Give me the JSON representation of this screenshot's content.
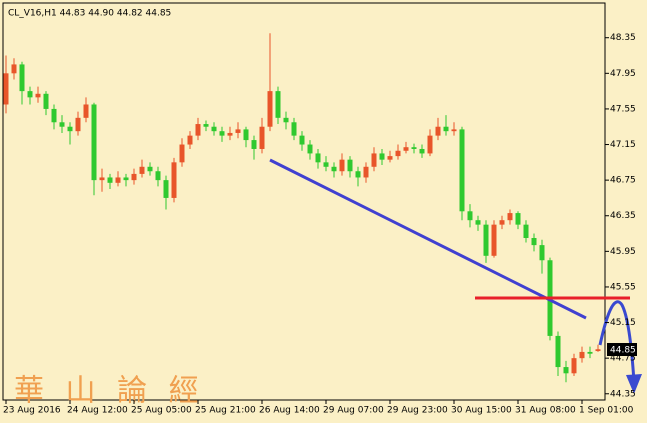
{
  "chart_data": {
    "type": "candlestick",
    "title": "CL_V16,H1  44.83 44.90 44.82 44.85",
    "watermark": "華 山 論 經",
    "categories": [
      "23 Aug 2016",
      null,
      null,
      null,
      null,
      null,
      null,
      null,
      "24 Aug 12:00",
      null,
      null,
      null,
      null,
      null,
      null,
      null,
      "25 Aug 05:00",
      null,
      null,
      null,
      null,
      null,
      null,
      null,
      "25 Aug 21:00",
      null,
      null,
      null,
      null,
      null,
      null,
      null,
      "26 Aug 14:00",
      null,
      null,
      null,
      null,
      null,
      null,
      null,
      "29 Aug 07:00",
      null,
      null,
      null,
      null,
      null,
      null,
      null,
      "29 Aug 23:00",
      null,
      null,
      null,
      null,
      null,
      null,
      null,
      "30 Aug 15:00",
      null,
      null,
      null,
      null,
      null,
      null,
      null,
      "31 Aug 08:00",
      null,
      null,
      null,
      null,
      null,
      null,
      null,
      "1 Sep 01:00",
      null,
      null
    ],
    "open": [
      47.6,
      47.95,
      48.05,
      47.75,
      47.68,
      47.72,
      47.55,
      47.4,
      47.35,
      47.3,
      47.45,
      47.6,
      46.75,
      46.78,
      46.72,
      46.78,
      46.75,
      46.82,
      46.9,
      46.85,
      46.75,
      46.55,
      46.95,
      47.15,
      47.25,
      47.38,
      47.35,
      47.3,
      47.25,
      47.28,
      47.32,
      47.2,
      47.1,
      47.35,
      47.75,
      47.45,
      47.4,
      47.25,
      47.15,
      47.05,
      46.95,
      46.9,
      46.85,
      46.98,
      46.85,
      46.78,
      46.9,
      47.05,
      46.98,
      47.02,
      47.08,
      47.12,
      47.1,
      47.05,
      47.25,
      47.35,
      47.3,
      47.32,
      46.4,
      46.3,
      46.25,
      45.9,
      46.25,
      46.3,
      46.38,
      46.25,
      46.1,
      46.02,
      45.85,
      45.0,
      44.65,
      44.58,
      44.75,
      44.82,
      44.83
    ],
    "high": [
      48.15,
      48.12,
      48.08,
      47.8,
      47.8,
      47.75,
      47.6,
      47.48,
      47.4,
      47.52,
      47.68,
      47.62,
      46.88,
      46.82,
      46.85,
      46.82,
      46.88,
      46.98,
      46.95,
      46.9,
      46.8,
      47.0,
      47.22,
      47.3,
      47.45,
      47.42,
      47.4,
      47.35,
      47.35,
      47.4,
      47.35,
      47.25,
      47.45,
      48.4,
      47.8,
      47.52,
      47.45,
      47.3,
      47.2,
      47.1,
      47.02,
      46.95,
      47.05,
      47.02,
      46.9,
      46.95,
      47.12,
      47.1,
      47.08,
      47.15,
      47.18,
      47.16,
      47.15,
      47.32,
      47.45,
      47.48,
      47.4,
      47.35,
      46.48,
      46.35,
      46.3,
      46.3,
      46.35,
      46.42,
      46.4,
      46.3,
      46.15,
      46.08,
      45.88,
      45.05,
      44.72,
      44.8,
      44.88,
      44.88,
      44.9
    ],
    "low": [
      47.5,
      47.88,
      47.6,
      47.6,
      47.62,
      47.48,
      47.32,
      47.28,
      47.15,
      47.25,
      47.4,
      46.58,
      46.62,
      46.65,
      46.68,
      46.68,
      46.7,
      46.78,
      46.8,
      46.68,
      46.42,
      46.5,
      46.9,
      47.1,
      47.2,
      47.3,
      47.25,
      47.18,
      47.2,
      47.22,
      47.12,
      46.98,
      47.05,
      47.3,
      47.38,
      47.32,
      47.2,
      47.08,
      46.98,
      46.88,
      46.85,
      46.78,
      46.8,
      46.78,
      46.68,
      46.72,
      46.85,
      46.92,
      46.95,
      46.98,
      47.05,
      47.05,
      47.0,
      47.02,
      47.2,
      47.25,
      47.25,
      46.3,
      46.22,
      46.18,
      45.82,
      45.88,
      46.2,
      46.25,
      46.2,
      46.05,
      45.95,
      45.7,
      44.95,
      44.55,
      44.48,
      44.55,
      44.7,
      44.75,
      44.82
    ],
    "close": [
      47.95,
      48.05,
      47.75,
      47.68,
      47.72,
      47.55,
      47.4,
      47.35,
      47.3,
      47.45,
      47.6,
      46.75,
      46.78,
      46.72,
      46.78,
      46.75,
      46.82,
      46.9,
      46.85,
      46.75,
      46.55,
      46.95,
      47.15,
      47.25,
      47.38,
      47.35,
      47.3,
      47.25,
      47.28,
      47.32,
      47.2,
      47.1,
      47.35,
      47.75,
      47.45,
      47.4,
      47.25,
      47.15,
      47.05,
      46.95,
      46.9,
      46.85,
      46.98,
      46.85,
      46.78,
      46.9,
      47.05,
      46.98,
      47.02,
      47.08,
      47.12,
      47.1,
      47.05,
      47.25,
      47.35,
      47.3,
      47.32,
      46.4,
      46.3,
      46.25,
      45.9,
      46.25,
      46.3,
      46.38,
      46.25,
      46.1,
      46.02,
      45.85,
      45.0,
      44.65,
      44.58,
      44.75,
      44.82,
      44.8,
      44.85
    ],
    "up_color": "#e8552a",
    "down_color": "#2fc92f",
    "ylim": [
      44.28,
      48.74
    ],
    "yticks": [
      44.35,
      44.75,
      45.15,
      45.55,
      45.95,
      46.35,
      46.75,
      47.15,
      47.55,
      47.95,
      48.35
    ]
  }
}
